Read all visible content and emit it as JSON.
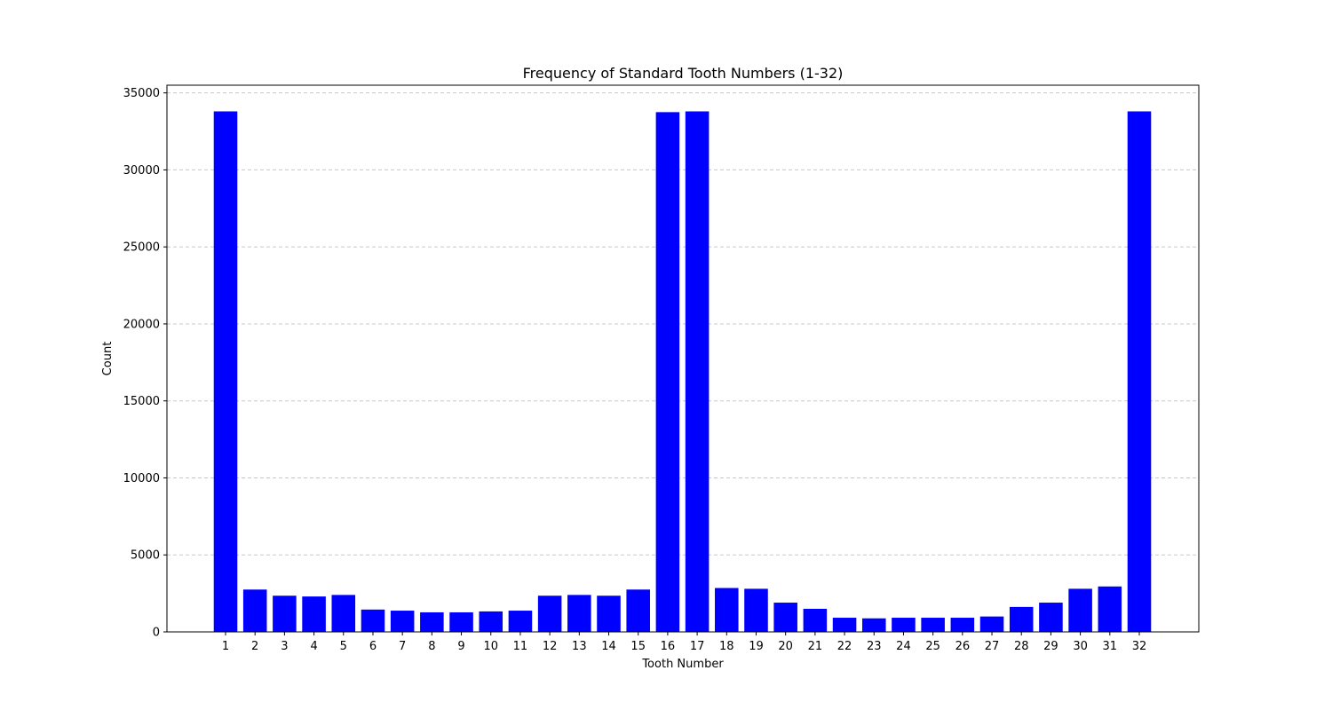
{
  "chart_data": {
    "type": "bar",
    "title": "Frequency of Standard Tooth Numbers (1-32)",
    "xlabel": "Tooth Number",
    "ylabel": "Count",
    "categories": [
      "1",
      "2",
      "3",
      "4",
      "5",
      "6",
      "7",
      "8",
      "9",
      "10",
      "11",
      "12",
      "13",
      "14",
      "15",
      "16",
      "17",
      "18",
      "19",
      "20",
      "21",
      "22",
      "23",
      "24",
      "25",
      "26",
      "27",
      "28",
      "29",
      "30",
      "31",
      "32"
    ],
    "values": [
      33800,
      2750,
      2350,
      2300,
      2400,
      1450,
      1380,
      1270,
      1270,
      1330,
      1380,
      2350,
      2400,
      2350,
      2750,
      33750,
      33800,
      2850,
      2800,
      1900,
      1500,
      920,
      880,
      920,
      920,
      920,
      1000,
      1620,
      1900,
      2800,
      2950,
      33800
    ],
    "ylim": [
      0,
      35500
    ],
    "yticks": [
      0,
      5000,
      10000,
      15000,
      20000,
      25000,
      30000,
      35000
    ],
    "grid": "y-dashed",
    "bar_color": "#0000ff",
    "grid_color": "#c8c8c8"
  }
}
